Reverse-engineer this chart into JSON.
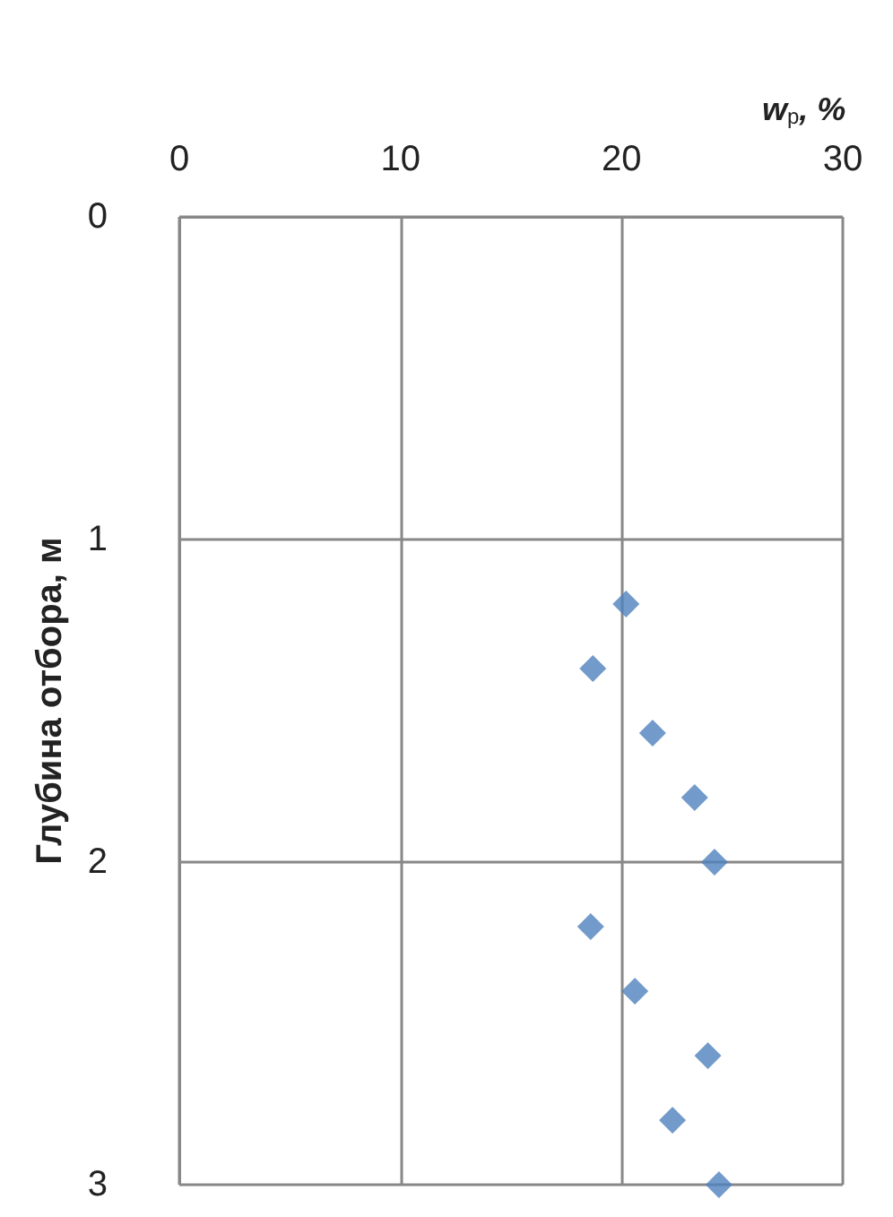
{
  "chart_data": {
    "type": "scatter",
    "xlabel": "w$_{p}$, %",
    "ylabel": "Глубина отбора, м",
    "x": [
      20.2,
      18.7,
      21.4,
      23.3,
      24.2,
      18.6,
      20.6,
      23.9,
      22.3,
      24.4
    ],
    "values": [
      1.2,
      1.4,
      1.6,
      1.8,
      2.0,
      2.2,
      2.4,
      2.6,
      2.8,
      3.0
    ],
    "color": "#4f81bd",
    "marker": "diamond",
    "xlim": [
      0,
      30
    ],
    "xticks": [
      0,
      10,
      20,
      30
    ],
    "ylim": [
      3,
      0
    ],
    "yticks": [
      0,
      1,
      2,
      3
    ],
    "grid": true
  }
}
